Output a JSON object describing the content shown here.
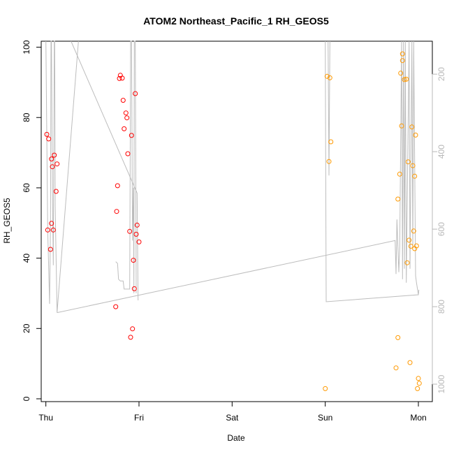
{
  "chart_data": {
    "type": "scatter",
    "title": "ATOM2 Northeast_Pacific_1 RH_GEOS5",
    "xlabel": "Date",
    "ylabel": "RH_GEOS5",
    "xlim": [
      -0.05,
      4.15
    ],
    "ylim": [
      -0.8,
      101.7
    ],
    "x_ticks": [
      {
        "x": 0,
        "label": "Thu"
      },
      {
        "x": 1,
        "label": "Fri"
      },
      {
        "x": 2,
        "label": "Sat"
      },
      {
        "x": 3,
        "label": "Sun"
      },
      {
        "x": 4,
        "label": "Mon"
      }
    ],
    "y_ticks": [
      {
        "y": 0,
        "label": "0"
      },
      {
        "y": 20,
        "label": "20"
      },
      {
        "y": 40,
        "label": "40"
      },
      {
        "y": 60,
        "label": "60"
      },
      {
        "y": 80,
        "label": "80"
      },
      {
        "y": 100,
        "label": "100"
      }
    ],
    "right_axis": {
      "ylim": [
        1045,
        115
      ],
      "ticks": [
        {
          "y": 200,
          "label": "200"
        },
        {
          "y": 400,
          "label": "400"
        },
        {
          "y": 600,
          "label": "600"
        },
        {
          "y": 800,
          "label": "800"
        },
        {
          "y": 1000,
          "label": "1000"
        }
      ],
      "color": "#b8b8b8"
    },
    "colors": {
      "series1": "#ff0000",
      "series2": "#ff9900",
      "line": "#bdbdbd"
    },
    "series": [
      {
        "color": "#ff0000",
        "points": [
          [
            0.01,
            75.2
          ],
          [
            0.02,
            48.0
          ],
          [
            0.03,
            73.9
          ],
          [
            0.05,
            42.5
          ],
          [
            0.06,
            68.2
          ],
          [
            0.06,
            49.9
          ],
          [
            0.07,
            66.0
          ],
          [
            0.08,
            48.0
          ],
          [
            0.09,
            69.3
          ],
          [
            0.11,
            59.0
          ],
          [
            0.12,
            66.8
          ],
          [
            0.75,
            26.2
          ],
          [
            0.76,
            53.3
          ],
          [
            0.77,
            60.6
          ],
          [
            0.79,
            91.1
          ],
          [
            0.8,
            92.0
          ],
          [
            0.82,
            91.2
          ],
          [
            0.83,
            84.9
          ],
          [
            0.84,
            76.8
          ],
          [
            0.86,
            81.3
          ],
          [
            0.87,
            79.9
          ],
          [
            0.88,
            69.7
          ],
          [
            0.9,
            47.6
          ],
          [
            0.91,
            17.5
          ],
          [
            0.92,
            74.9
          ],
          [
            0.93,
            19.9
          ],
          [
            0.94,
            39.4
          ],
          [
            0.95,
            31.3
          ],
          [
            0.96,
            86.8
          ],
          [
            0.97,
            46.8
          ],
          [
            0.98,
            49.4
          ],
          [
            1.0,
            44.6
          ]
        ]
      },
      {
        "color": "#ff9900",
        "points": [
          [
            3.0,
            2.9
          ],
          [
            3.02,
            91.7
          ],
          [
            3.04,
            67.5
          ],
          [
            3.05,
            91.3
          ],
          [
            3.06,
            73.1
          ],
          [
            3.76,
            8.8
          ],
          [
            3.78,
            17.4
          ],
          [
            3.78,
            56.8
          ],
          [
            3.8,
            63.9
          ],
          [
            3.81,
            92.6
          ],
          [
            3.82,
            77.6
          ],
          [
            3.83,
            96.2
          ],
          [
            3.83,
            98.1
          ],
          [
            3.85,
            90.8
          ],
          [
            3.87,
            90.9
          ],
          [
            3.88,
            38.7
          ],
          [
            3.89,
            67.4
          ],
          [
            3.9,
            45.1
          ],
          [
            3.91,
            10.3
          ],
          [
            3.92,
            43.4
          ],
          [
            3.93,
            77.3
          ],
          [
            3.94,
            66.3
          ],
          [
            3.95,
            47.7
          ],
          [
            3.96,
            63.3
          ],
          [
            3.96,
            42.7
          ],
          [
            3.97,
            75.0
          ],
          [
            3.98,
            43.5
          ],
          [
            3.99,
            2.9
          ],
          [
            4.0,
            5.8
          ],
          [
            4.01,
            4.4
          ]
        ]
      }
    ],
    "line": [
      [
        0.0,
        101.7
      ],
      [
        0.02,
        48
      ],
      [
        0.04,
        27
      ],
      [
        0.05,
        50
      ],
      [
        0.055,
        101.7
      ],
      [
        0.06,
        101.7
      ],
      [
        0.07,
        60
      ],
      [
        0.08,
        38
      ],
      [
        0.09,
        101.7
      ],
      [
        0.095,
        101.7
      ],
      [
        0.1,
        55
      ],
      [
        0.12,
        24.5
      ],
      [
        0.35,
        101.7
      ]
    ],
    "line2": [
      [
        0.27,
        101.7
      ],
      [
        0.98,
        58.5
      ],
      [
        0.99,
        28
      ]
    ],
    "line3": [
      [
        0.75,
        39
      ],
      [
        0.77,
        38.5
      ],
      [
        0.78,
        34
      ],
      [
        0.8,
        33.5
      ],
      [
        0.83,
        33.5
      ],
      [
        0.84,
        31.2
      ],
      [
        0.9,
        31.2
      ],
      [
        0.91,
        101.7
      ],
      [
        0.92,
        101.7
      ],
      [
        0.93,
        45
      ],
      [
        0.94,
        60
      ],
      [
        0.945,
        30
      ],
      [
        0.95,
        101.7
      ],
      [
        0.96,
        101.7
      ],
      [
        0.97,
        30
      ]
    ],
    "line4": [
      [
        0.12,
        24.5
      ],
      [
        3.75,
        45
      ],
      [
        3.76,
        35.5
      ],
      [
        3.77,
        51
      ],
      [
        3.79,
        36
      ],
      [
        3.8,
        43
      ],
      [
        3.82,
        101.7
      ],
      [
        3.83,
        34
      ],
      [
        3.84,
        101.7
      ],
      [
        3.85,
        37
      ],
      [
        3.86,
        101.7
      ],
      [
        3.87,
        33
      ],
      [
        3.9,
        101.7
      ],
      [
        3.91,
        37
      ],
      [
        3.93,
        101.7
      ],
      [
        3.94,
        43
      ],
      [
        3.95,
        101.7
      ],
      [
        3.97,
        35
      ],
      [
        3.98,
        33
      ],
      [
        4.0,
        29.6
      ]
    ],
    "line5": [
      [
        3.0,
        101.7
      ],
      [
        3.01,
        27.6
      ],
      [
        4.0,
        29.6
      ],
      [
        4.005,
        31
      ]
    ],
    "line6": [
      [
        3.03,
        101.7
      ],
      [
        3.04,
        63.5
      ],
      [
        3.05,
        101.7
      ]
    ]
  }
}
